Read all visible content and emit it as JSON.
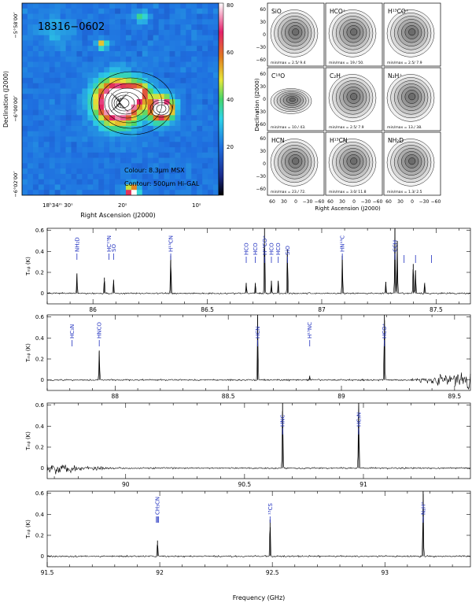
{
  "map_panel": {
    "source_label": "18316−0602",
    "colour_note": "Colour: 8.3μm MSX",
    "contour_note": "Contour: 500μm Hi-GAL",
    "xlabel": "Right Ascension (J2000)",
    "ylabel": "Declination (J2000)",
    "x_ticks": [
      "18ʰ34ᵐ 30ˢ",
      "20ˢ",
      "10ˢ"
    ],
    "y_ticks": [
      "−5°58′00″",
      "−6°00′00″",
      "−6°02′00″"
    ],
    "colorbar_ticks": [
      "80",
      "60",
      "40",
      "20"
    ],
    "colorbar_range": [
      0,
      80
    ]
  },
  "mini_maps": {
    "xlabel": "Right Ascension (J2000)",
    "ylabel": "Declination (J2000)",
    "x_ticks": [
      "60",
      "30",
      "0",
      "−30",
      "−60"
    ],
    "y_ticks": [
      "60",
      "30",
      "0",
      "−30",
      "−60"
    ],
    "panels": [
      {
        "name": "SiO",
        "minmax": "min/max = 2.5/ 9.4"
      },
      {
        "name": "HCO⁺",
        "minmax": "min/max = 19./ 50."
      },
      {
        "name": "H¹³CO⁺",
        "minmax": "min/max = 2.5/ 7.9"
      },
      {
        "name": "C¹⁸O",
        "minmax": "min/max = 10./ 43."
      },
      {
        "name": "C₂H",
        "minmax": "min/max = 2.5/ 7.9"
      },
      {
        "name": "N₂H⁺",
        "minmax": "min/max = 13./ 38."
      },
      {
        "name": "HCN",
        "minmax": "min/max = 23./ 72."
      },
      {
        "name": "H¹³CN",
        "minmax": "min/max = 3.0/ 11.8"
      },
      {
        "name": "NH₂D",
        "minmax": "min/max = 1.3/ 2.5"
      }
    ]
  },
  "spectra": {
    "ylabel": "Tₘᵦ (K)",
    "xlabel": "Frequency (GHz)",
    "y_ticks": [
      "0.6",
      "0.4",
      "0.2",
      "0"
    ],
    "rows": [
      {
        "x_ticks": [
          "86",
          "86.5",
          "87",
          "87.5"
        ],
        "labels": [
          "NH₂D",
          "HC¹⁵N",
          "SO",
          "H¹³CN",
          "HCO",
          "HCO",
          "H¹³CO⁺",
          "HCO",
          "HCO",
          "SiO",
          "HN¹³C",
          "CCH"
        ]
      },
      {
        "x_ticks": [
          "88",
          "88.5",
          "89",
          "89.5"
        ],
        "labels": [
          "HC₃N",
          "HNCO",
          "HCN",
          "H¹⁵NC",
          "HCO⁺"
        ]
      },
      {
        "x_ticks": [
          "90",
          "90.5",
          "91"
        ],
        "labels": [
          "HNC",
          "HC₃N"
        ]
      },
      {
        "x_ticks": [
          "91.5",
          "92",
          "92.5",
          "93"
        ],
        "labels": [
          "CH₃CN",
          "¹³CS",
          "N₂H⁺"
        ]
      }
    ]
  },
  "chart_data": [
    {
      "type": "heatmap",
      "title": "18316−0602",
      "xlabel": "Right Ascension (J2000)",
      "ylabel": "Declination (J2000)",
      "colorbar_range": [
        0,
        80
      ],
      "colour_map": "8.3μm MSX",
      "contours": "500μm Hi-GAL"
    },
    {
      "type": "line",
      "xlabel": "Frequency (GHz)",
      "ylabel": "Tₘᵦ (K)",
      "ylim": [
        -0.1,
        0.62
      ],
      "series": [
        {
          "xlim": [
            85.8,
            87.65
          ],
          "lines": [
            [
              85.93,
              0.19
            ],
            [
              86.05,
              0.15
            ],
            [
              86.09,
              0.13
            ],
            [
              86.34,
              0.36
            ],
            [
              86.67,
              0.1
            ],
            [
              86.71,
              0.1
            ],
            [
              86.75,
              0.62
            ],
            [
              86.78,
              0.12
            ],
            [
              86.81,
              0.12
            ],
            [
              86.85,
              0.42
            ],
            [
              87.09,
              0.36
            ],
            [
              87.28,
              0.11
            ],
            [
              87.32,
              0.62
            ],
            [
              87.33,
              0.5
            ],
            [
              87.4,
              0.28
            ],
            [
              87.41,
              0.22
            ],
            [
              87.45,
              0.1
            ]
          ]
        },
        {
          "xlim": [
            87.7,
            89.57
          ],
          "lines": [
            [
              87.93,
              0.28
            ],
            [
              88.63,
              0.62
            ],
            [
              88.86,
              0.04
            ],
            [
              89.19,
              0.62
            ]
          ],
          "noisy_from": 89.3
        },
        {
          "xlim": [
            89.67,
            91.45
          ],
          "lines": [
            [
              90.66,
              0.62
            ],
            [
              90.98,
              0.62
            ]
          ],
          "noisy_to": 89.95
        },
        {
          "xlim": [
            91.5,
            93.38
          ],
          "lines": [
            [
              91.99,
              0.15
            ],
            [
              92.49,
              0.35
            ],
            [
              93.17,
              0.62
            ]
          ]
        }
      ]
    }
  ]
}
